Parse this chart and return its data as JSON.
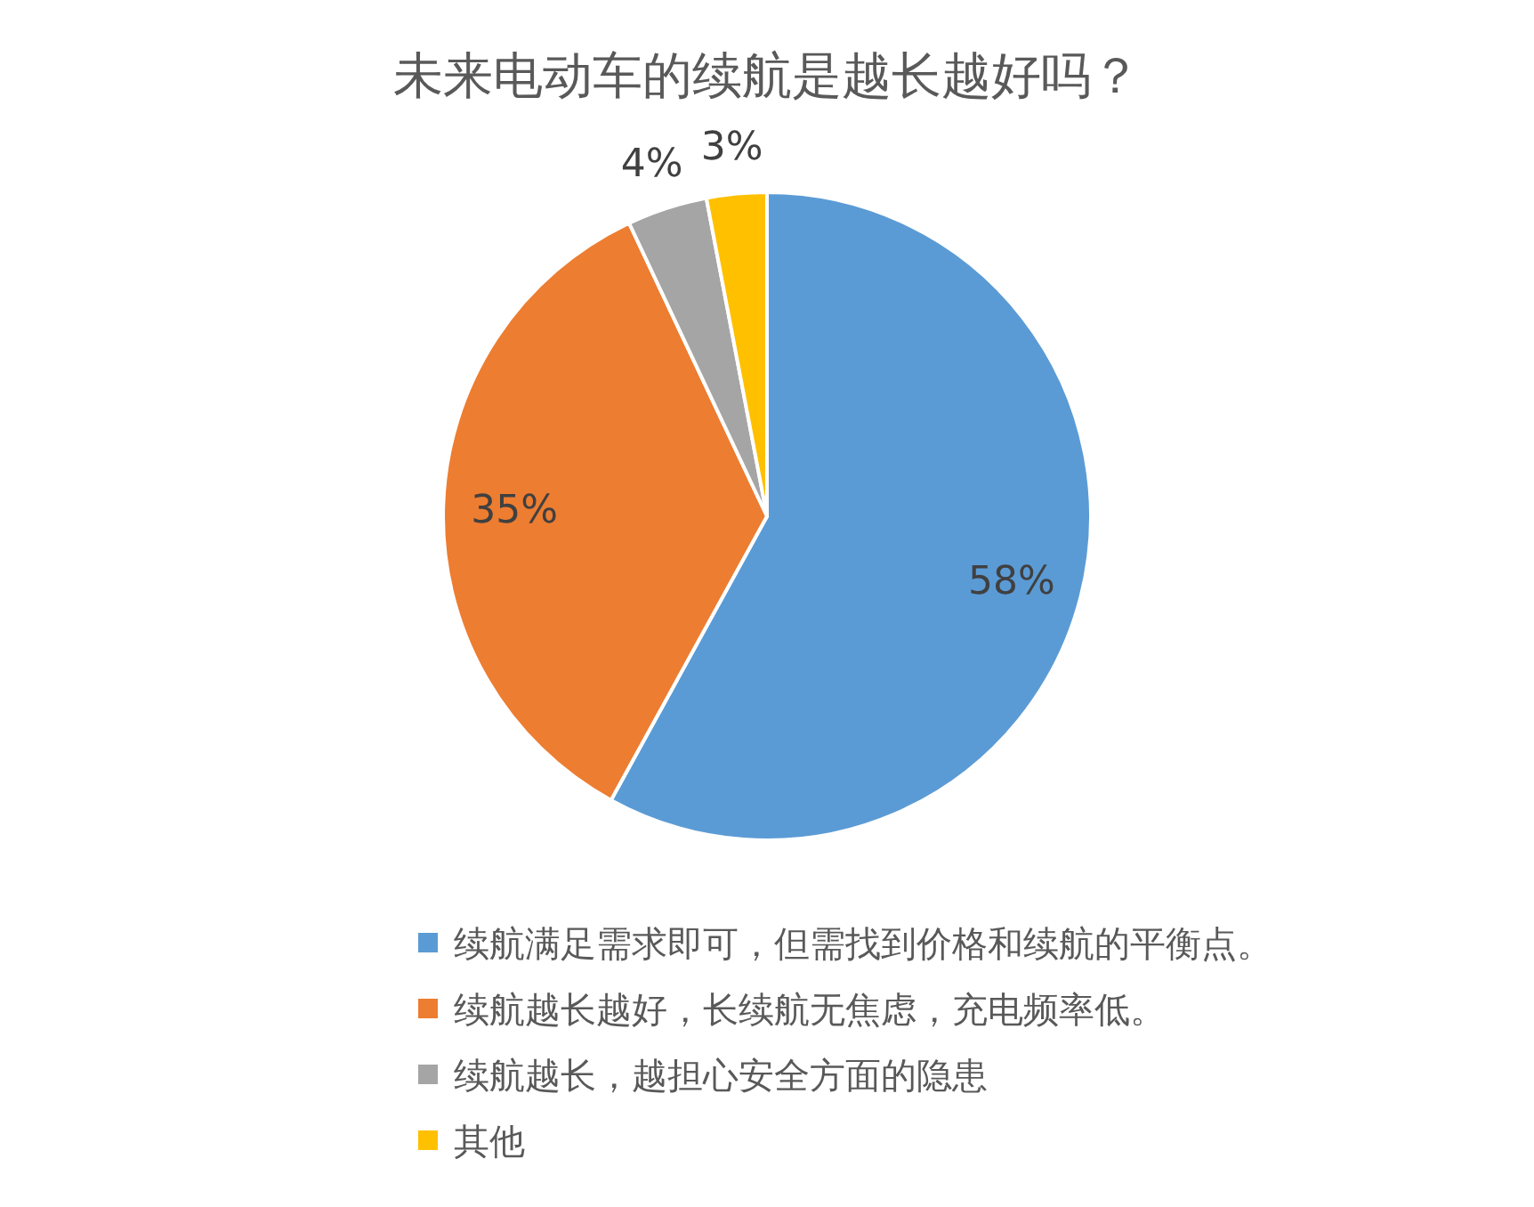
{
  "chart_data": {
    "type": "pie",
    "title": "未来电动车的续航是越长越好吗？",
    "categories": [
      "续航满足需求即可，但需找到价格和续航的平衡点。",
      "续航越长越好，长续航无焦虑，充电频率低。",
      "续航越长，越担心安全方面的隐患",
      "其他"
    ],
    "values": [
      58,
      35,
      4,
      3
    ],
    "colors": [
      "#5b9bd5",
      "#ed7d31",
      "#a5a5a5",
      "#ffc000"
    ],
    "value_labels": [
      "58%",
      "35%",
      "4%",
      "3%"
    ],
    "legend": "bottom"
  }
}
